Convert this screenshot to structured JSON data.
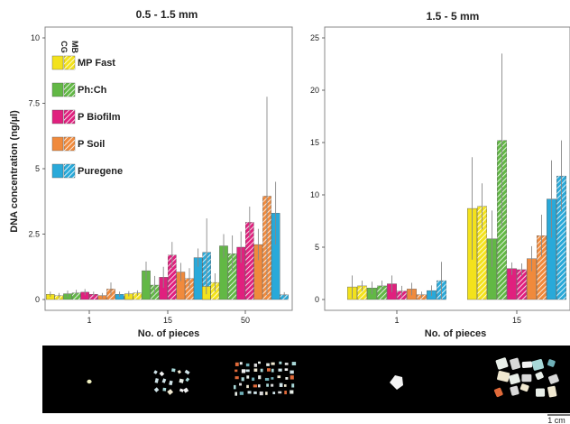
{
  "chart_data": [
    {
      "type": "bar",
      "title": "0.5 - 1.5 mm",
      "xlabel": "No. of pieces",
      "ylabel": "DNA concentration (ng/µl)",
      "ylim": [
        0,
        10
      ],
      "yticks": [
        "0",
        "2.5",
        "5",
        "7.5",
        "10"
      ],
      "yticks_values": [
        0,
        2.5,
        5,
        7.5,
        10
      ],
      "categories": [
        "1",
        "15",
        "50"
      ],
      "series": [
        {
          "name": "MP Fast",
          "method": "CG",
          "values": [
            0.2,
            0.22,
            0.5
          ],
          "errors": [
            0.1,
            0.1,
            0.3
          ]
        },
        {
          "name": "MP Fast",
          "method": "MB",
          "values": [
            0.15,
            0.25,
            0.65
          ],
          "errors": [
            0.1,
            0.1,
            0.35
          ]
        },
        {
          "name": "Ph:Ch",
          "method": "CG",
          "values": [
            0.22,
            1.1,
            2.05
          ],
          "errors": [
            0.12,
            0.35,
            0.45
          ]
        },
        {
          "name": "Ph:Ch",
          "method": "MB",
          "values": [
            0.25,
            0.55,
            1.75
          ],
          "errors": [
            0.12,
            0.35,
            0.7
          ]
        },
        {
          "name": "P Biofilm",
          "method": "CG",
          "values": [
            0.28,
            0.85,
            2.0
          ],
          "errors": [
            0.12,
            0.4,
            0.6
          ]
        },
        {
          "name": "P Biofilm",
          "method": "MB",
          "values": [
            0.2,
            1.7,
            2.95
          ],
          "errors": [
            0.1,
            0.5,
            0.6
          ]
        },
        {
          "name": "P Soil",
          "method": "CG",
          "values": [
            0.15,
            1.05,
            2.1
          ],
          "errors": [
            0.1,
            0.35,
            0.6
          ]
        },
        {
          "name": "P Soil",
          "method": "MB",
          "values": [
            0.4,
            0.8,
            3.95
          ],
          "errors": [
            0.25,
            0.4,
            3.8
          ]
        },
        {
          "name": "Puregene",
          "method": "CG",
          "values": [
            0.2,
            1.6,
            3.3
          ],
          "errors": [
            0.1,
            0.35,
            1.2
          ]
        },
        {
          "name": "Puregene",
          "method": "MB",
          "values": [
            0.12,
            1.8,
            0.18
          ],
          "errors": [
            0.08,
            1.3,
            0.1
          ]
        }
      ]
    },
    {
      "type": "bar",
      "title": "1.5 - 5 mm",
      "xlabel": "No. of pieces",
      "ylim": [
        0,
        25
      ],
      "yticks": [
        "0",
        "5",
        "10",
        "15",
        "20",
        "25"
      ],
      "yticks_values": [
        0,
        5,
        10,
        15,
        20,
        25
      ],
      "categories": [
        "1",
        "15"
      ],
      "series": [
        {
          "name": "MP Fast",
          "method": "CG",
          "values": [
            1.2,
            8.7
          ],
          "errors": [
            1.1,
            4.9
          ]
        },
        {
          "name": "MP Fast",
          "method": "MB",
          "values": [
            1.3,
            8.9
          ],
          "errors": [
            0.5,
            2.2
          ]
        },
        {
          "name": "Ph:Ch",
          "method": "CG",
          "values": [
            1.1,
            5.8
          ],
          "errors": [
            0.6,
            2.7
          ]
        },
        {
          "name": "Ph:Ch",
          "method": "MB",
          "values": [
            1.3,
            15.2
          ],
          "errors": [
            0.5,
            8.3
          ]
        },
        {
          "name": "P Biofilm",
          "method": "CG",
          "values": [
            1.5,
            2.95
          ],
          "errors": [
            0.8,
            0.6
          ]
        },
        {
          "name": "P Biofilm",
          "method": "MB",
          "values": [
            0.8,
            2.85
          ],
          "errors": [
            0.5,
            0.6
          ]
        },
        {
          "name": "P Soil",
          "method": "CG",
          "values": [
            1.0,
            3.9
          ],
          "errors": [
            0.6,
            1.2
          ]
        },
        {
          "name": "P Soil",
          "method": "MB",
          "values": [
            0.45,
            6.1
          ],
          "errors": [
            0.3,
            2.0
          ]
        },
        {
          "name": "Puregene",
          "method": "CG",
          "values": [
            0.85,
            9.6
          ],
          "errors": [
            0.5,
            3.7
          ]
        },
        {
          "name": "Puregene",
          "method": "MB",
          "values": [
            1.8,
            11.8
          ],
          "errors": [
            1.8,
            3.4
          ]
        }
      ]
    }
  ],
  "legend": {
    "headers": [
      "CG",
      "MB"
    ],
    "items": [
      "MP Fast",
      "Ph:Ch",
      "P Biofilm",
      "P Soil",
      "Puregene"
    ]
  },
  "colors": {
    "MP Fast": "#f3e21c",
    "Ph:Ch": "#62b845",
    "P Biofilm": "#e0207e",
    "P Soil": "#f08a3c",
    "Puregene": "#29a9d9"
  },
  "scale_bar": "1 cm"
}
